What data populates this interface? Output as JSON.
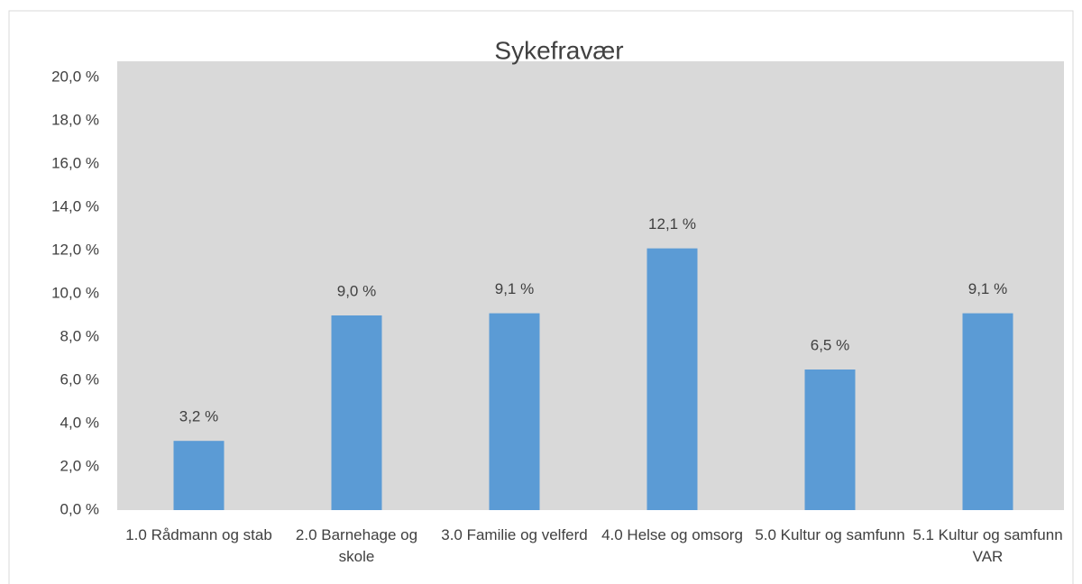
{
  "chart_data": {
    "type": "bar",
    "title": "Sykefravær",
    "categories": [
      "1.0 Rådmann og stab",
      "2.0 Barnehage og skole",
      "3.0 Familie og velferd",
      "4.0  Helse og omsorg",
      "5.0 Kultur og samfunn",
      "5.1 Kultur og samfunn VAR"
    ],
    "values": [
      3.2,
      9.0,
      9.1,
      12.1,
      6.5,
      9.1
    ],
    "value_labels": [
      "3,2 %",
      "9,0 %",
      "9,1 %",
      "12,1 %",
      "6,5 %",
      "9,1 %"
    ],
    "color": "#5b9bd5",
    "ylim": [
      0,
      20
    ],
    "yticks": [
      {
        "value": 0,
        "label": "0,0 %"
      },
      {
        "value": 2,
        "label": "2,0 %"
      },
      {
        "value": 4,
        "label": "4,0 %"
      },
      {
        "value": 6,
        "label": "6,0 %"
      },
      {
        "value": 8,
        "label": "8,0 %"
      },
      {
        "value": 10,
        "label": "10,0 %"
      },
      {
        "value": 12,
        "label": "12,0 %"
      },
      {
        "value": 14,
        "label": "14,0 %"
      },
      {
        "value": 16,
        "label": "16,0 %"
      },
      {
        "value": 18,
        "label": "18,0 %"
      },
      {
        "value": 20,
        "label": "20,0 %"
      }
    ],
    "grid": false
  }
}
